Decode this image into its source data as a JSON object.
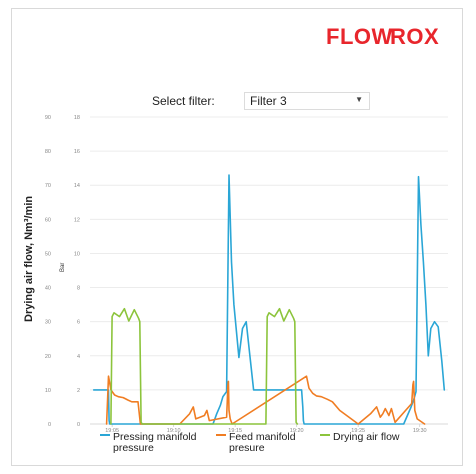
{
  "brand": {
    "logo_text": "FLOWROX",
    "logo_color": "#e8262c"
  },
  "filter": {
    "label": "Select filter:",
    "selected": "Filter 3"
  },
  "chart_data": {
    "type": "line",
    "ylabel": "Drying air flow, Nm³/min",
    "y2label": "Bar",
    "y_left": {
      "ticks": [
        "0",
        "10",
        "20",
        "30",
        "40",
        "50",
        "60",
        "70",
        "80",
        "90"
      ],
      "range": [
        0,
        90
      ]
    },
    "y_right": {
      "ticks": [
        "0",
        "2",
        "4",
        "6",
        "8",
        "10",
        "12",
        "14",
        "16",
        "18"
      ],
      "range": [
        0,
        18
      ]
    },
    "x_ticks": [
      "19:05",
      "19:10",
      "19:15",
      "19:20",
      "19:25",
      "19:30"
    ],
    "x_tick_minutes": [
      5,
      10,
      15,
      20,
      25,
      30
    ],
    "x_range_minutes": [
      3.2,
      32.3
    ],
    "grid": true,
    "legend_placement": "bottom",
    "series": [
      {
        "name": "Pressing manifold pressure",
        "color": "#2aa6d6",
        "axis": "right",
        "x": [
          3.5,
          4.7,
          4.75,
          4.8,
          13.2,
          13.5,
          13.8,
          14.0,
          14.3,
          14.5,
          14.7,
          14.9,
          15.3,
          15.6,
          15.9,
          16.2,
          16.5,
          16.8,
          20.3,
          20.4,
          20.5,
          20.55,
          20.6,
          28.7,
          29.0,
          29.3,
          29.5,
          29.7,
          29.9,
          30.1,
          30.3,
          30.5,
          30.7,
          30.9,
          31.2,
          31.5,
          31.8,
          32.0
        ],
        "y": [
          2.0,
          2.0,
          0.2,
          0,
          0,
          0.6,
          1.1,
          1.6,
          1.9,
          14.6,
          9.5,
          7.0,
          3.9,
          5.6,
          6.0,
          4.0,
          2.0,
          2.0,
          2.0,
          2.0,
          1.0,
          0.2,
          0,
          0,
          0.5,
          1.0,
          1.4,
          1.9,
          14.5,
          11.7,
          9.5,
          7.0,
          4.0,
          5.6,
          6.0,
          5.7,
          3.7,
          2.0
        ]
      },
      {
        "name": "Feed manifold presure",
        "color": "#f07d23",
        "axis": "right",
        "x": [
          4.55,
          4.7,
          4.9,
          5.2,
          5.5,
          5.9,
          6.3,
          6.6,
          7.1,
          7.3,
          10.5,
          11.3,
          11.6,
          11.8,
          12.5,
          12.7,
          12.9,
          14.3,
          14.35,
          14.4,
          14.45,
          14.5,
          14.6,
          14.75,
          20.8,
          21.0,
          21.3,
          21.6,
          22.0,
          22.5,
          22.9,
          23.5,
          25.0,
          26.0,
          26.5,
          26.8,
          27.0,
          27.2,
          27.5,
          27.7,
          28.0,
          29.35,
          29.45,
          29.5,
          29.6,
          29.8,
          30.4
        ],
        "y": [
          0,
          2.8,
          2.0,
          1.7,
          1.6,
          1.55,
          1.4,
          1.3,
          1.3,
          0,
          0,
          0.6,
          1.0,
          0.3,
          0.5,
          0.8,
          0.2,
          0.4,
          1.2,
          2.2,
          2.5,
          0.8,
          0.3,
          0,
          2.8,
          2.1,
          1.8,
          1.65,
          1.6,
          1.45,
          1.3,
          0.8,
          0,
          0.6,
          1.0,
          0.4,
          0.6,
          0.9,
          0.5,
          0.9,
          0.1,
          1.2,
          2.3,
          2.5,
          0.8,
          0.3,
          0
        ]
      },
      {
        "name": "Drying air flow",
        "color": "#8cc43c",
        "axis": "left",
        "x": [
          4.9,
          5.0,
          5.15,
          5.6,
          6.0,
          6.35,
          6.8,
          7.15,
          7.25,
          7.35,
          7.45,
          17.5,
          17.6,
          17.75,
          18.2,
          18.6,
          18.95,
          19.4,
          19.75,
          19.85,
          19.95,
          20.05
        ],
        "y": [
          0,
          31.5,
          32.6,
          31.5,
          33.8,
          30.2,
          33.5,
          31.0,
          30.0,
          0.5,
          0,
          0,
          31.5,
          32.6,
          31.5,
          33.8,
          30.2,
          33.5,
          31.0,
          30.0,
          0.5,
          0
        ]
      }
    ]
  },
  "legend": {
    "items": [
      {
        "line1": "Pressing manifold",
        "line2": "pressure",
        "color": "#2aa6d6"
      },
      {
        "line1": "Feed manifold",
        "line2": "presure",
        "color": "#f07d23"
      },
      {
        "line1": "Drying air flow",
        "line2": "",
        "color": "#8cc43c"
      }
    ]
  }
}
